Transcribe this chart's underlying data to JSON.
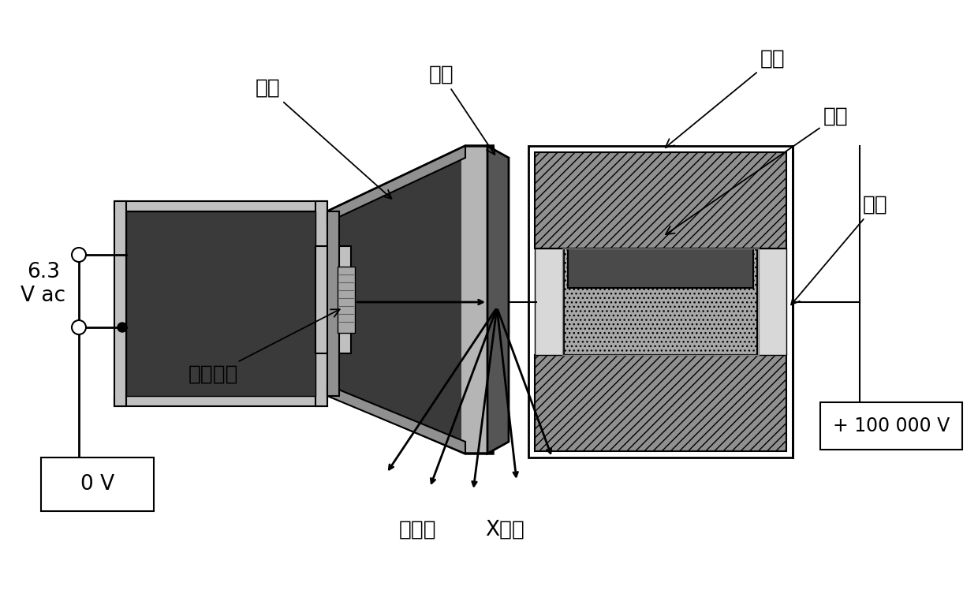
{
  "bg_color": "#ffffff",
  "label_yangji": "阳极",
  "label_wuba": "钨靶",
  "label_dingzi": "定子",
  "label_zhuanzi": "转子",
  "label_zuoquan": "座圈",
  "label_yinjidengsi": "阴极灯丝",
  "label_dianzishu": "电子束",
  "label_xshexian": "X射线",
  "label_0v": "0 V",
  "label_100kv": "+ 100 000 V",
  "label_63vac_1": "6.3",
  "label_63vac_2": "V ac",
  "black": "#000000",
  "white": "#ffffff",
  "dark_gray": "#3a3a3a",
  "mid_gray": "#808080",
  "light_gray": "#c0c0c0",
  "med_light_gray": "#b0b0b0",
  "stator_gray": "#909090"
}
